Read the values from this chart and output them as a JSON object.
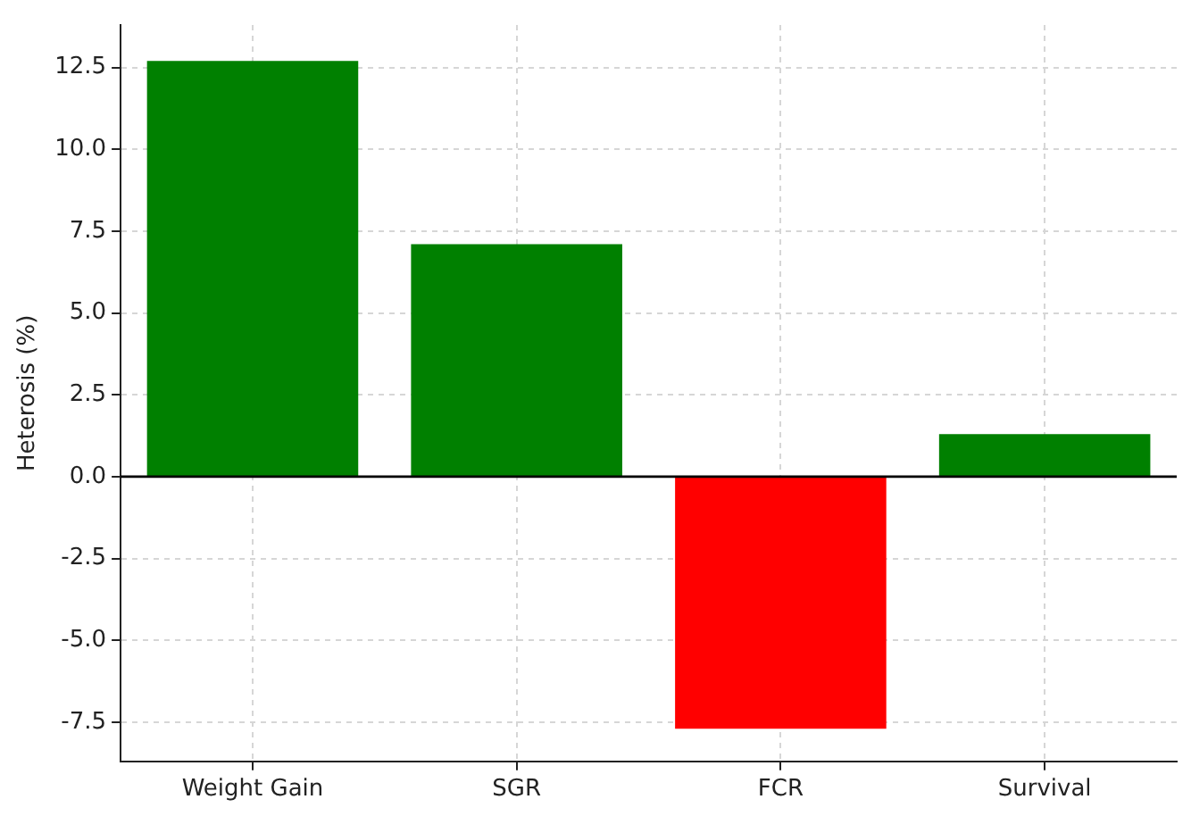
{
  "chart_data": {
    "type": "bar",
    "ylabel": "Heterosis (%)",
    "categories": [
      "Weight Gain",
      "SGR",
      "FCR",
      "Survival"
    ],
    "values": [
      12.7,
      7.1,
      -7.7,
      1.3
    ],
    "colors": [
      "#008000",
      "#008000",
      "#ff0000",
      "#008000"
    ],
    "ylim": [
      -8.7,
      13.8
    ],
    "yticks": [
      -7.5,
      {
        "value": -5,
        "label": "-5.0"
      },
      -2.5,
      {
        "value": 0,
        "label": "0.0"
      },
      2.5,
      {
        "value": 5,
        "label": "5.0"
      },
      7.5,
      {
        "value": 10,
        "label": "10.0"
      },
      12.5
    ],
    "grid": true,
    "ref_lines": [
      {
        "axis": "y",
        "value": 0,
        "color": "#000000"
      }
    ]
  }
}
